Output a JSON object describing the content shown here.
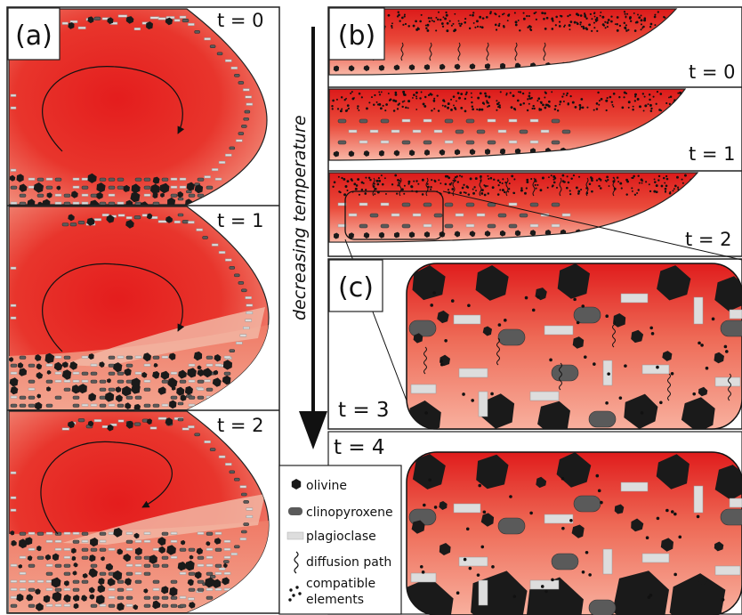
{
  "panels": {
    "a": {
      "label": "(a)",
      "stages": [
        {
          "time": "t = 0"
        },
        {
          "time": "t = 1"
        },
        {
          "time": "t = 2"
        }
      ]
    },
    "b": {
      "label": "(b)",
      "stages": [
        {
          "time": "t = 0"
        },
        {
          "time": "t = 1"
        },
        {
          "time": "t = 2"
        }
      ]
    },
    "c": {
      "label": "(c)",
      "stages": [
        {
          "time": "t = 3"
        },
        {
          "time": "t = 4"
        }
      ]
    }
  },
  "arrow_label": "decreasing temperature",
  "legend": {
    "items": [
      {
        "label": "olivine",
        "symbol": "hexagon-icon",
        "color": "#1a1a1a"
      },
      {
        "label": "clinopyroxene",
        "symbol": "rounded-rect-icon",
        "color": "#5a5a5a"
      },
      {
        "label": "plagioclase",
        "symbol": "rect-icon",
        "color": "#dddddd"
      },
      {
        "label": "diffusion path",
        "symbol": "wavy-line-icon",
        "color": "#111111"
      },
      {
        "label": "compatible",
        "label2": "elements",
        "symbol": "dots-icon",
        "color": "#111111"
      }
    ]
  },
  "colors": {
    "melt_core": "#e41d1d",
    "melt_edge": "#f4a08c",
    "olivine": "#1a1a1a",
    "clinopyroxene": "#5a5a5a",
    "plagioclase": "#dddddd",
    "border": "#222222"
  }
}
